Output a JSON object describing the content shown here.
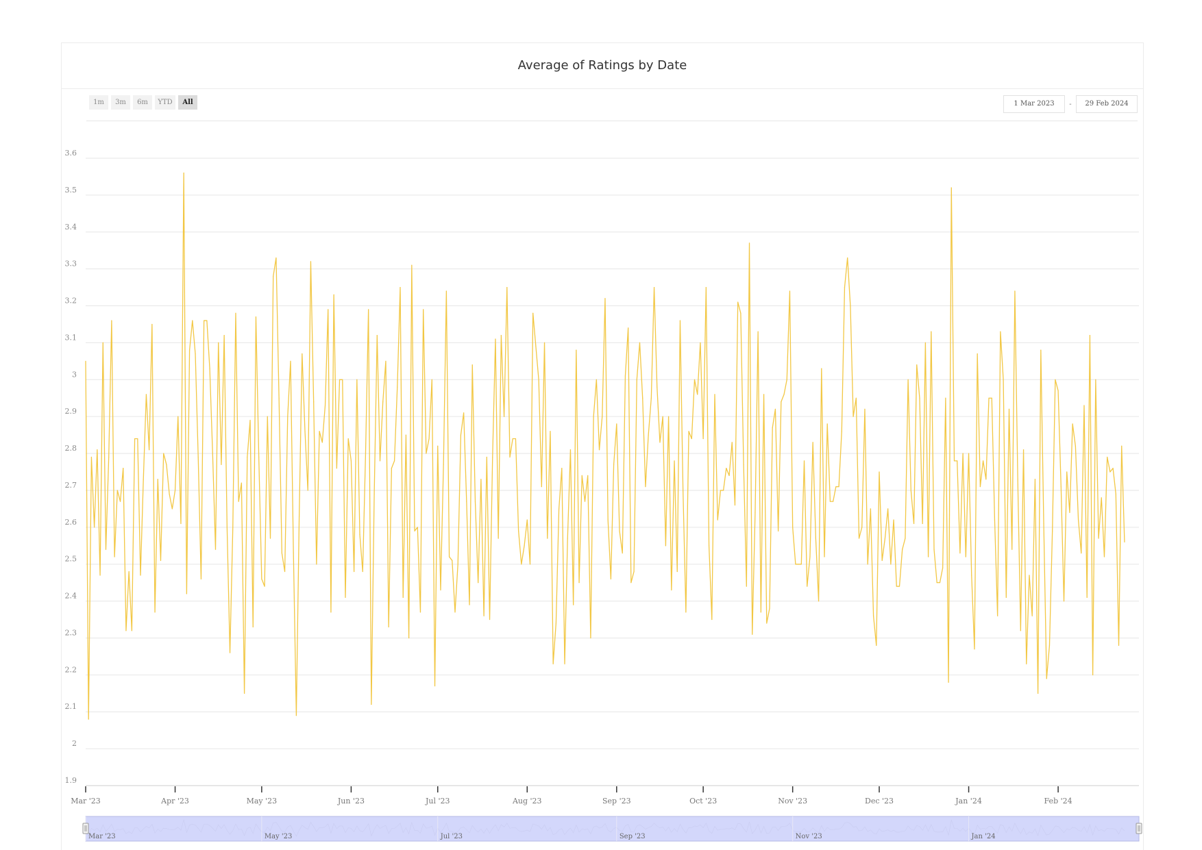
{
  "title": "Average of Ratings by Date",
  "zoom_buttons": [
    "1m",
    "3m",
    "6m",
    "YTD",
    "All"
  ],
  "zoom_active": "All",
  "range_from": "1 Mar 2023",
  "range_to": "29 Feb 2024",
  "range_separator": "-",
  "colors": {
    "series": "#f2c744",
    "navigator_mask": "#d3d7fb",
    "gridline": "#e6e6e6"
  },
  "chart_data": {
    "type": "line",
    "title": "Average of Ratings by Date",
    "xlabel": "",
    "ylabel": "",
    "ylim": [
      1.9,
      3.6
    ],
    "xlim": [
      "2023-03-01",
      "2024-02-29"
    ],
    "yticks": [
      "1.9",
      "2",
      "2.1",
      "2.2",
      "2.3",
      "2.4",
      "2.5",
      "2.6",
      "2.7",
      "2.8",
      "2.9",
      "3",
      "3.1",
      "3.2",
      "3.3",
      "3.4",
      "3.5",
      "3.6"
    ],
    "xticks": [
      {
        "date": "2023-03-01",
        "label": "Mar '23"
      },
      {
        "date": "2023-04-01",
        "label": "Apr '23"
      },
      {
        "date": "2023-05-01",
        "label": "May '23"
      },
      {
        "date": "2023-06-01",
        "label": "Jun '23"
      },
      {
        "date": "2023-07-01",
        "label": "Jul '23"
      },
      {
        "date": "2023-08-01",
        "label": "Aug '23"
      },
      {
        "date": "2023-09-01",
        "label": "Sep '23"
      },
      {
        "date": "2023-10-01",
        "label": "Oct '23"
      },
      {
        "date": "2023-11-01",
        "label": "Nov '23"
      },
      {
        "date": "2023-12-01",
        "label": "Dec '23"
      },
      {
        "date": "2024-01-01",
        "label": "Jan '24"
      },
      {
        "date": "2024-02-01",
        "label": "Feb '24"
      }
    ],
    "navigator_ticks": [
      {
        "date": "2023-03-01",
        "label": "Mar '23"
      },
      {
        "date": "2023-05-01",
        "label": "May '23"
      },
      {
        "date": "2023-07-01",
        "label": "Jul '23"
      },
      {
        "date": "2023-09-01",
        "label": "Sep '23"
      },
      {
        "date": "2023-11-01",
        "label": "Nov '23"
      },
      {
        "date": "2024-01-01",
        "label": "Jan '24"
      }
    ],
    "grid": true,
    "legend": "none",
    "series": [
      {
        "start": "2023-03-01",
        "interval": "1 day",
        "values": [
          3.05,
          2.08,
          2.79,
          2.6,
          2.81,
          2.47,
          3.1,
          2.54,
          2.79,
          3.16,
          2.52,
          2.7,
          2.67,
          2.76,
          2.32,
          2.48,
          2.32,
          2.84,
          2.84,
          2.47,
          2.73,
          2.96,
          2.81,
          3.15,
          2.37,
          2.73,
          2.51,
          2.8,
          2.77,
          2.69,
          2.65,
          2.7,
          2.9,
          2.61,
          3.56,
          2.42,
          3.08,
          3.16,
          3.07,
          2.79,
          2.46,
          3.16,
          3.16,
          3.03,
          2.8,
          2.54,
          3.1,
          2.77,
          3.12,
          2.6,
          2.26,
          2.6,
          3.18,
          2.67,
          2.72,
          2.15,
          2.79,
          2.89,
          2.33,
          3.17,
          2.79,
          2.46,
          2.44,
          2.9,
          2.57,
          3.28,
          3.33,
          2.95,
          2.53,
          2.48,
          2.9,
          3.05,
          2.53,
          2.09,
          2.63,
          3.07,
          2.86,
          2.7,
          3.32,
          2.94,
          2.5,
          2.86,
          2.83,
          2.93,
          3.19,
          2.37,
          3.23,
          2.76,
          3.0,
          3.0,
          2.41,
          2.84,
          2.78,
          2.48,
          3.0,
          2.58,
          2.48,
          2.8,
          3.19,
          2.12,
          2.69,
          3.12,
          2.78,
          2.94,
          3.05,
          2.33,
          2.76,
          2.78,
          2.98,
          3.25,
          2.41,
          2.85,
          2.3,
          3.31,
          2.59,
          2.6,
          2.37,
          3.19,
          2.8,
          2.84,
          3.0,
          2.17,
          2.82,
          2.43,
          2.77,
          3.24,
          2.52,
          2.51,
          2.37,
          2.5,
          2.85,
          2.91,
          2.67,
          2.39,
          3.04,
          2.67,
          2.45,
          2.73,
          2.36,
          2.79,
          2.35,
          2.79,
          3.11,
          2.57,
          3.12,
          2.9,
          3.25,
          2.79,
          2.84,
          2.84,
          2.59,
          2.5,
          2.55,
          2.62,
          2.5,
          3.18,
          3.09,
          3.0,
          2.71,
          3.1,
          2.57,
          2.86,
          2.23,
          2.34,
          2.65,
          2.76,
          2.23,
          2.57,
          2.81,
          2.39,
          3.08,
          2.45,
          2.74,
          2.67,
          2.74,
          2.3,
          2.9,
          3.0,
          2.81,
          2.9,
          3.22,
          2.62,
          2.46,
          2.77,
          2.88,
          2.59,
          2.53,
          3.01,
          3.14,
          2.45,
          2.48,
          3.0,
          3.1,
          2.95,
          2.71,
          2.85,
          2.95,
          3.25,
          2.98,
          2.83,
          2.9,
          2.55,
          2.9,
          2.43,
          2.78,
          2.48,
          3.16,
          2.7,
          2.37,
          2.86,
          2.84,
          3.0,
          2.96,
          3.1,
          2.84,
          3.25,
          2.55,
          2.35,
          2.96,
          2.62,
          2.7,
          2.7,
          2.76,
          2.74,
          2.83,
          2.66,
          3.21,
          3.18,
          2.77,
          2.44,
          3.37,
          2.31,
          2.64,
          3.13,
          2.37,
          2.96,
          2.34,
          2.38,
          2.87,
          2.92,
          2.59,
          2.94,
          2.96,
          3.0,
          3.24,
          2.6,
          2.5,
          2.5,
          2.5,
          2.78,
          2.44,
          2.52,
          2.83,
          2.57,
          2.4,
          3.03,
          2.52,
          2.88,
          2.67,
          2.67,
          2.71,
          2.71,
          2.86,
          3.25,
          3.33,
          3.2,
          2.9,
          2.95,
          2.57,
          2.6,
          2.92,
          2.5,
          2.65,
          2.36,
          2.28,
          2.75,
          2.51,
          2.57,
          2.65,
          2.5,
          2.62,
          2.44,
          2.44,
          2.54,
          2.57,
          3.0,
          2.7,
          2.61,
          3.04,
          2.95,
          2.61,
          3.1,
          2.52,
          3.13,
          2.54,
          2.45,
          2.45,
          2.49,
          2.95,
          2.18,
          3.52,
          2.78,
          2.78,
          2.53,
          2.8,
          2.52,
          2.8,
          2.47,
          2.27,
          3.07,
          2.71,
          2.78,
          2.73,
          2.95,
          2.95,
          2.62,
          2.36,
          3.13,
          3.0,
          2.41,
          2.92,
          2.54,
          3.24,
          2.73,
          2.32,
          2.81,
          2.23,
          2.47,
          2.36,
          2.73,
          2.15,
          3.08,
          2.61,
          2.19,
          2.28,
          2.59,
          3.0,
          2.97,
          2.71,
          2.4,
          2.75,
          2.64,
          2.88,
          2.82,
          2.62,
          2.53,
          2.93,
          2.41,
          3.12,
          2.2,
          3.0,
          2.57,
          2.68,
          2.52,
          2.79,
          2.75,
          2.76,
          2.69,
          2.28,
          2.82,
          2.56
        ]
      }
    ]
  }
}
